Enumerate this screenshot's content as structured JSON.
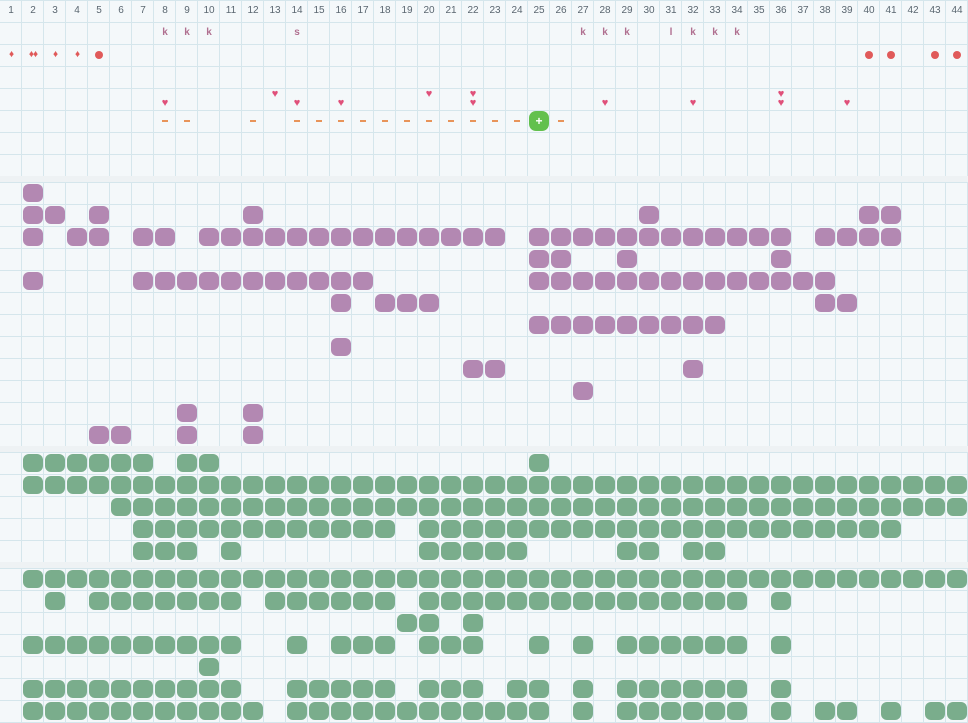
{
  "columns": [
    "1",
    "2",
    "3",
    "4",
    "5",
    "6",
    "7",
    "8",
    "9",
    "10",
    "11",
    "12",
    "13",
    "14",
    "15",
    "16",
    "17",
    "18",
    "19",
    "20",
    "21",
    "22",
    "23",
    "24",
    "25",
    "26",
    "27",
    "28",
    "29",
    "30",
    "31",
    "32",
    "33",
    "34",
    "35",
    "36",
    "37",
    "38",
    "39",
    "40",
    "41",
    "42",
    "43",
    "44"
  ],
  "notes": [
    {
      "col": 8,
      "text": "k"
    },
    {
      "col": 9,
      "text": "k"
    },
    {
      "col": 10,
      "text": "k"
    },
    {
      "col": 14,
      "text": "s"
    },
    {
      "col": 27,
      "text": "k"
    },
    {
      "col": 28,
      "text": "k"
    },
    {
      "col": 29,
      "text": "k"
    },
    {
      "col": 31,
      "text": "l"
    },
    {
      "col": 32,
      "text": "k"
    },
    {
      "col": 33,
      "text": "k"
    },
    {
      "col": 34,
      "text": "k"
    }
  ],
  "drops": [
    {
      "col": 1,
      "text": "♦"
    },
    {
      "col": 2,
      "text": "♦♦"
    },
    {
      "col": 3,
      "text": "♦"
    },
    {
      "col": 4,
      "text": "♦"
    }
  ],
  "dots": [
    5,
    40,
    41,
    43,
    44
  ],
  "hearts": [
    {
      "col": 8,
      "row": 1
    },
    {
      "col": 13,
      "row": 0
    },
    {
      "col": 14,
      "row": 1
    },
    {
      "col": 16,
      "row": 1
    },
    {
      "col": 20,
      "row": 0
    },
    {
      "col": 22,
      "row": 0
    },
    {
      "col": 22,
      "row": 1
    },
    {
      "col": 28,
      "row": 1
    },
    {
      "col": 32,
      "row": 1
    },
    {
      "col": 36,
      "row": 0
    },
    {
      "col": 36,
      "row": 1
    },
    {
      "col": 39,
      "row": 1
    }
  ],
  "dashes": [
    8,
    9,
    12,
    14,
    15,
    16,
    17,
    18,
    19,
    20,
    21,
    22,
    23,
    24,
    26
  ],
  "marker": {
    "col": 25,
    "symbol": "+",
    "color": "#62c04d"
  },
  "colors": {
    "purple": "#b388b2",
    "green": "#7aad8c",
    "red": "#e05a5a",
    "pink": "#e0507a",
    "orange": "#e8945a"
  },
  "purple_rows": [
    [
      2
    ],
    [
      2,
      3,
      5,
      12,
      30,
      40,
      41
    ],
    [
      2,
      4,
      5,
      7,
      8,
      10,
      11,
      12,
      13,
      14,
      15,
      16,
      17,
      18,
      19,
      20,
      21,
      22,
      23,
      25,
      26,
      27,
      28,
      29,
      30,
      31,
      32,
      33,
      34,
      35,
      36,
      38,
      39,
      40,
      41
    ],
    [
      25,
      26,
      29,
      36
    ],
    [
      2,
      7,
      8,
      9,
      10,
      11,
      12,
      13,
      14,
      15,
      16,
      17,
      25,
      26,
      27,
      28,
      29,
      30,
      31,
      32,
      33,
      34,
      35,
      36,
      37,
      38
    ],
    [
      16,
      18,
      19,
      20,
      38,
      39
    ],
    [
      25,
      26,
      27,
      28,
      29,
      30,
      31,
      32,
      33
    ],
    [
      16
    ],
    [
      22,
      23,
      32
    ],
    [
      27
    ],
    [
      9,
      12
    ],
    [
      5,
      6,
      9,
      12
    ]
  ],
  "green_rows_a": [
    [
      2,
      3,
      4,
      5,
      6,
      7,
      9,
      10,
      25
    ],
    [
      2,
      3,
      4,
      5,
      6,
      7,
      8,
      9,
      10,
      11,
      12,
      13,
      14,
      15,
      16,
      17,
      18,
      19,
      20,
      21,
      22,
      23,
      24,
      25,
      26,
      27,
      28,
      29,
      30,
      31,
      32,
      33,
      34,
      35,
      36,
      37,
      38,
      39,
      40,
      41,
      42,
      43,
      44
    ],
    [
      6,
      7,
      8,
      9,
      10,
      11,
      12,
      13,
      14,
      15,
      16,
      17,
      18,
      19,
      20,
      21,
      22,
      23,
      24,
      25,
      26,
      27,
      28,
      29,
      30,
      31,
      32,
      33,
      34,
      35,
      36,
      37,
      38,
      39,
      40,
      41,
      42,
      43,
      44
    ],
    [
      7,
      8,
      9,
      10,
      11,
      12,
      13,
      14,
      15,
      16,
      17,
      18,
      20,
      21,
      22,
      23,
      24,
      25,
      26,
      27,
      28,
      29,
      30,
      31,
      32,
      33,
      34,
      35,
      36,
      37,
      38,
      39,
      40,
      41
    ],
    [
      7,
      8,
      9,
      11,
      20,
      21,
      22,
      23,
      24,
      29,
      30,
      32,
      33
    ]
  ],
  "green_rows_b": [
    [
      2,
      3,
      4,
      5,
      6,
      7,
      8,
      9,
      10,
      11,
      12,
      13,
      14,
      15,
      16,
      17,
      18,
      19,
      20,
      21,
      22,
      23,
      24,
      25,
      26,
      27,
      28,
      29,
      30,
      31,
      32,
      33,
      34,
      35,
      36,
      37,
      38,
      39,
      40,
      41,
      42,
      43,
      44
    ],
    [
      3,
      5,
      6,
      7,
      8,
      9,
      10,
      11,
      13,
      14,
      15,
      16,
      17,
      18,
      20,
      21,
      22,
      23,
      24,
      25,
      26,
      27,
      28,
      29,
      30,
      31,
      32,
      33,
      34,
      36
    ],
    [
      19,
      20,
      22
    ],
    [
      2,
      3,
      4,
      5,
      6,
      7,
      8,
      9,
      10,
      11,
      14,
      16,
      17,
      18,
      20,
      21,
      22,
      25,
      27,
      29,
      30,
      31,
      32,
      33,
      34,
      36
    ],
    [
      10
    ],
    [
      2,
      3,
      4,
      5,
      6,
      7,
      8,
      9,
      10,
      11,
      14,
      15,
      16,
      17,
      18,
      20,
      21,
      22,
      24,
      25,
      27,
      29,
      30,
      31,
      32,
      33,
      34,
      36
    ],
    [
      2,
      3,
      4,
      5,
      6,
      7,
      8,
      9,
      10,
      11,
      12,
      14,
      15,
      16,
      17,
      18,
      19,
      20,
      21,
      22,
      23,
      24,
      25,
      27,
      29,
      30,
      31,
      32,
      33,
      34,
      36,
      38,
      39,
      41,
      43,
      44
    ]
  ]
}
